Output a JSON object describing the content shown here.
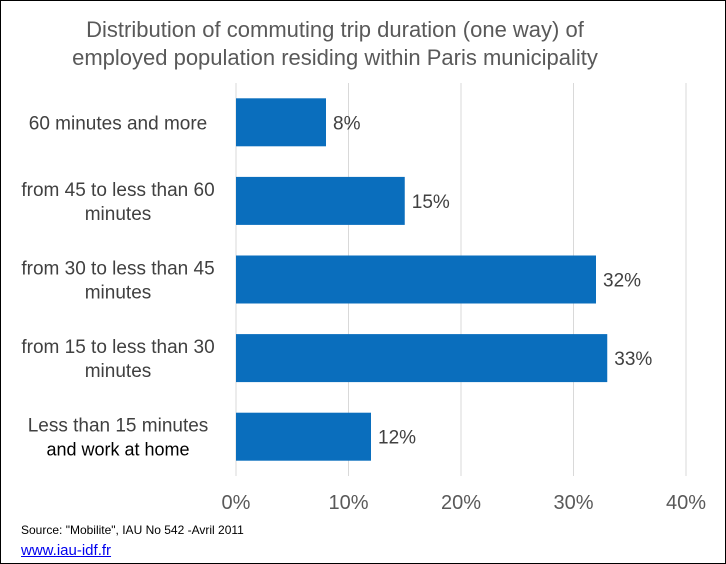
{
  "chart_data": {
    "type": "bar",
    "orientation": "horizontal",
    "title": "Distribution of commuting trip duration (one way) of employed population residing within Paris municipality",
    "title_lines": [
      "Distribution of commuting trip duration (one way) of",
      "employed population residing within Paris municipality"
    ],
    "categories": [
      "60 minutes and more",
      "from  45 to less than 60 minutes",
      "from 30 to less than 45 minutes",
      "from 15 to less than 30 minutes",
      "Less than 15 minutes and work at home"
    ],
    "category_lines": [
      [
        "60 minutes and more"
      ],
      [
        "from  45 to less than 60",
        "minutes"
      ],
      [
        "from 30 to less than 45",
        "minutes"
      ],
      [
        "from 15 to less than 30",
        "minutes"
      ],
      [
        "Less than 15 minutes",
        "and work at home"
      ]
    ],
    "values": [
      8,
      15,
      32,
      33,
      12
    ],
    "data_labels": [
      "8%",
      "15%",
      "32%",
      "33%",
      "12%"
    ],
    "xlim": [
      0,
      40
    ],
    "xticks": [
      0,
      10,
      20,
      30,
      40
    ],
    "xtick_labels": [
      "0%",
      "10%",
      "20%",
      "30%",
      "40%"
    ],
    "grid": "vertical",
    "legend": "none",
    "colors": {
      "bar": "#0a6ebd",
      "grid": "#d9d9d9"
    }
  },
  "footer": {
    "source": "Source: \"Mobilite\", IAU No 542 -Avril 2011",
    "link": "www.iau-idf.fr"
  }
}
